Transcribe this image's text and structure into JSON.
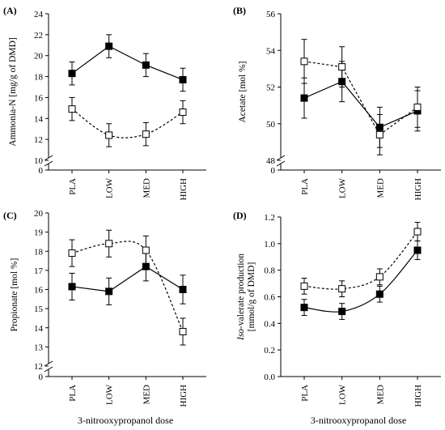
{
  "chart_data": [
    {
      "id": "A",
      "type": "line",
      "panel_label": "(A)",
      "ylabel": "Ammonia-N [mg/g of DMD]",
      "xlabel": "",
      "categories": [
        "PLA",
        "LOW",
        "MED",
        "HIGH"
      ],
      "ylim": [
        0,
        24
      ],
      "axis_break": true,
      "yticks": [
        "0",
        "10",
        "12",
        "14",
        "16",
        "18",
        "20",
        "22",
        "24"
      ],
      "grid": false,
      "legend": "none",
      "series": [
        {
          "marker": "filled-square",
          "line": "solid",
          "line_shape": "straight",
          "values": [
            18.3,
            20.9,
            19.1,
            17.7
          ],
          "errors": [
            1.1,
            1.1,
            1.1,
            1.1
          ]
        },
        {
          "marker": "open-square",
          "line": "dashed",
          "line_shape": "curved-fit",
          "values": [
            14.9,
            12.4,
            12.5,
            14.6
          ],
          "errors": [
            1.1,
            1.1,
            1.1,
            1.1
          ]
        }
      ]
    },
    {
      "id": "B",
      "type": "line",
      "panel_label": "(B)",
      "ylabel": "Acetate [mol %]",
      "xlabel": "",
      "categories": [
        "PLA",
        "LOW",
        "MED",
        "HIGH"
      ],
      "ylim": [
        0,
        56
      ],
      "axis_break": true,
      "yticks": [
        "0",
        "48",
        "50",
        "52",
        "54",
        "56"
      ],
      "grid": false,
      "legend": "none",
      "series": [
        {
          "marker": "filled-square",
          "line": "solid",
          "line_shape": "straight",
          "values": [
            51.4,
            52.3,
            49.8,
            50.7
          ],
          "errors": [
            1.1,
            1.1,
            1.1,
            1.1
          ]
        },
        {
          "marker": "open-square",
          "line": "dashed",
          "line_shape": "straight",
          "values": [
            53.4,
            53.1,
            49.4,
            50.9
          ],
          "errors": [
            1.2,
            1.1,
            1.1,
            1.1
          ]
        }
      ]
    },
    {
      "id": "C",
      "type": "line",
      "panel_label": "(C)",
      "ylabel": "Propionate [mol %]",
      "xlabel": "3-nitrooxypropanol dose",
      "categories": [
        "PLA",
        "LOW",
        "MED",
        "HIGH"
      ],
      "ylim": [
        0,
        20
      ],
      "axis_break": true,
      "yticks": [
        "0",
        "12",
        "13",
        "14",
        "15",
        "16",
        "17",
        "18",
        "19",
        "20"
      ],
      "grid": false,
      "legend": "none",
      "series": [
        {
          "marker": "filled-square",
          "line": "solid",
          "line_shape": "straight",
          "values": [
            16.15,
            15.9,
            17.2,
            16.0
          ],
          "errors": [
            0.7,
            0.7,
            0.75,
            0.75
          ]
        },
        {
          "marker": "open-square",
          "line": "dashed",
          "line_shape": "curved-fit",
          "values": [
            17.9,
            18.4,
            18.05,
            13.8
          ],
          "errors": [
            0.7,
            0.7,
            0.75,
            0.7
          ]
        }
      ]
    },
    {
      "id": "D",
      "type": "line",
      "panel_label": "(D)",
      "ylabel_prefix": "Iso",
      "ylabel_line1": "-valerate production",
      "ylabel_line2": "[mmol/g of DMD]",
      "xlabel": "3-nitrooxypropanol dose",
      "categories": [
        "PLA",
        "LOW",
        "MED",
        "HIGH"
      ],
      "ylim": [
        0,
        1.2
      ],
      "axis_break": false,
      "yticks": [
        "0.0",
        "0.2",
        "0.4",
        "0.6",
        "0.8",
        "1.0",
        "1.2"
      ],
      "grid": false,
      "legend": "none",
      "series": [
        {
          "marker": "filled-square",
          "line": "solid",
          "line_shape": "curved-fit",
          "values": [
            0.52,
            0.49,
            0.62,
            0.95
          ],
          "errors": [
            0.06,
            0.06,
            0.06,
            0.07
          ]
        },
        {
          "marker": "open-square",
          "line": "dashed",
          "line_shape": "curved-fit",
          "values": [
            0.68,
            0.66,
            0.75,
            1.09
          ],
          "errors": [
            0.06,
            0.06,
            0.06,
            0.07
          ]
        }
      ]
    }
  ]
}
